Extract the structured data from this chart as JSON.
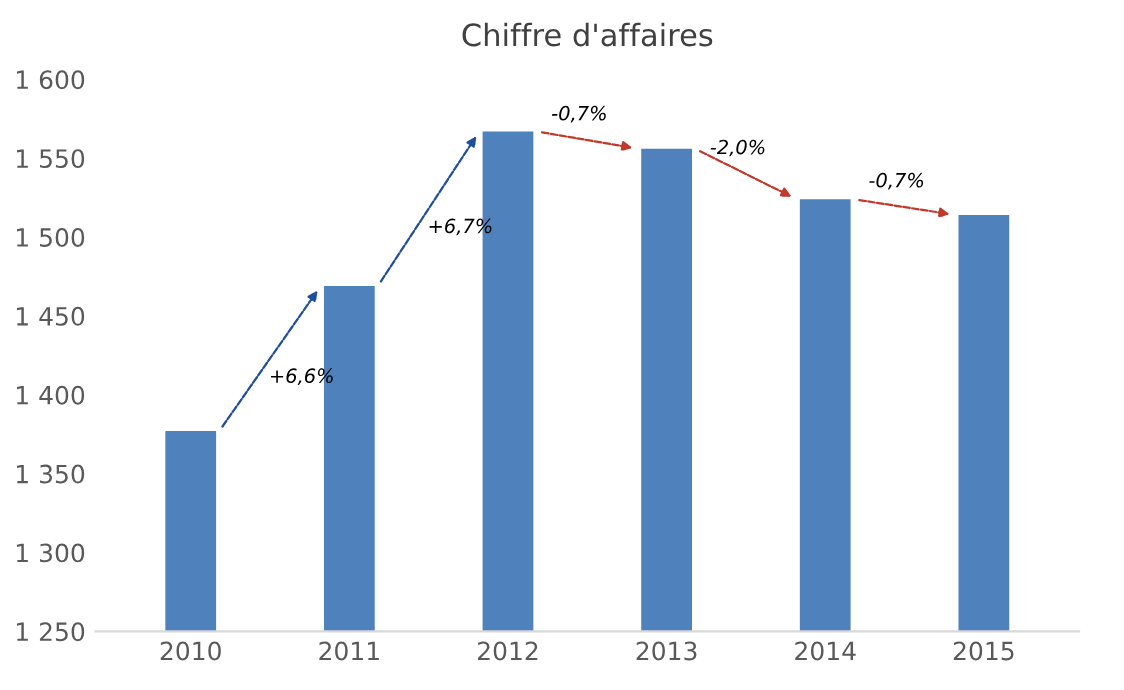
{
  "chart_data": {
    "type": "bar",
    "title": "Chiffre d'affaires",
    "categories": [
      "2010",
      "2011",
      "2012",
      "2013",
      "2014",
      "2015"
    ],
    "values": [
      1377,
      1469,
      1567,
      1556,
      1524,
      1514
    ],
    "color": "#4f81bd",
    "ylim": [
      1250,
      1600
    ],
    "yticks": [
      {
        "value": 1250,
        "label": "1 250"
      },
      {
        "value": 1300,
        "label": "1 300"
      },
      {
        "value": 1350,
        "label": "1 350"
      },
      {
        "value": 1400,
        "label": "1 400"
      },
      {
        "value": 1450,
        "label": "1 450"
      },
      {
        "value": 1500,
        "label": "1 500"
      },
      {
        "value": 1550,
        "label": "1 550"
      },
      {
        "value": 1600,
        "label": "1 600"
      }
    ],
    "grid": false,
    "annotations": [
      "+6,6%",
      "+6,7%",
      "-0,7%",
      "-2,0%",
      "-0,7%"
    ]
  }
}
